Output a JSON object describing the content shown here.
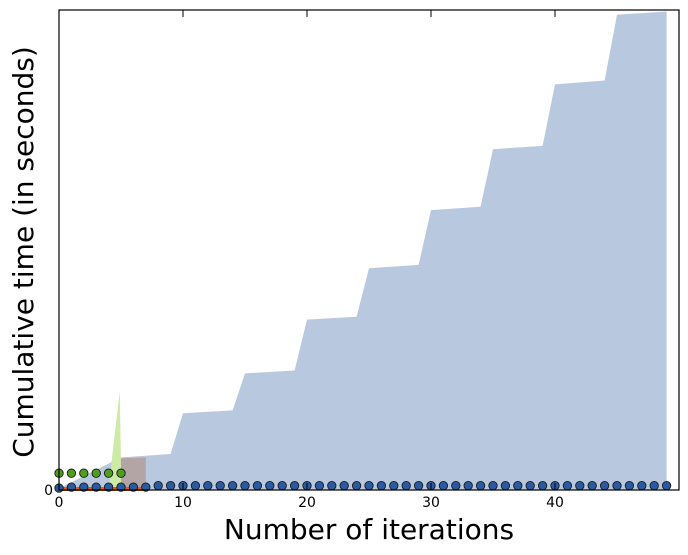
{
  "chart_data": {
    "type": "area",
    "xlabel": "Number of iterations",
    "ylabel": "Cumulative time (in seconds)",
    "xlim": [
      0,
      50
    ],
    "ylim": [
      0,
      100
    ],
    "x_ticks": [
      0,
      10,
      20,
      30,
      40
    ],
    "y_ticks": [
      0
    ],
    "grid": false,
    "legend": "none",
    "series": [
      {
        "kind": "area",
        "color": "#b8c8df",
        "x": [
          0,
          5,
          9,
          10,
          14,
          15,
          19,
          20,
          24,
          25,
          29,
          30,
          34,
          35,
          39,
          40,
          44,
          45,
          49
        ],
        "values": [
          0.3,
          6.8,
          7.5,
          16.0,
          16.6,
          24.3,
          24.9,
          35.5,
          36.1,
          46.2,
          46.9,
          58.3,
          59.0,
          71.0,
          71.7,
          84.5,
          85.3,
          99.0,
          99.7
        ]
      },
      {
        "kind": "area",
        "color": "#b3a5a6",
        "x": [
          0,
          4,
          5,
          7
        ],
        "values": [
          0.3,
          0.5,
          6.6,
          6.8
        ]
      },
      {
        "kind": "area",
        "color": "#cdeaa6",
        "x": [
          0,
          4,
          4.9,
          5
        ],
        "values": [
          0.3,
          0.5,
          20.6,
          5.0
        ]
      },
      {
        "kind": "line",
        "color": "#e05a1c",
        "x": [
          0,
          1,
          2,
          3,
          4,
          5,
          6,
          7
        ],
        "values": [
          0.2,
          0.2,
          0.2,
          0.2,
          0.2,
          0.2,
          0.2,
          0.2
        ]
      },
      {
        "kind": "markers",
        "color": "#4f9e1d",
        "x": [
          0,
          1,
          2,
          3,
          4,
          5
        ],
        "values": [
          3.5,
          3.5,
          3.5,
          3.5,
          3.5,
          3.5
        ]
      },
      {
        "kind": "markers",
        "color": "#2a5aa0",
        "x": [
          0,
          1,
          2,
          3,
          4,
          5,
          6,
          7,
          8,
          9,
          10,
          11,
          12,
          13,
          14,
          15,
          16,
          17,
          18,
          19,
          20,
          21,
          22,
          23,
          24,
          25,
          26,
          27,
          28,
          29,
          30,
          31,
          32,
          33,
          34,
          35,
          36,
          37,
          38,
          39,
          40,
          41,
          42,
          43,
          44,
          45,
          46,
          47,
          48,
          49
        ],
        "values": [
          0.4,
          0.6,
          0.6,
          0.6,
          0.6,
          0.6,
          0.6,
          0.6,
          0.9,
          0.9,
          0.9,
          0.9,
          0.9,
          0.9,
          0.9,
          0.9,
          0.9,
          0.9,
          0.9,
          0.9,
          0.9,
          0.9,
          0.9,
          0.9,
          0.9,
          0.9,
          0.9,
          0.9,
          0.9,
          0.9,
          0.9,
          0.9,
          0.9,
          0.9,
          0.9,
          0.9,
          0.9,
          0.9,
          0.9,
          0.9,
          0.9,
          0.9,
          0.9,
          0.9,
          0.9,
          0.9,
          0.9,
          0.9,
          0.9,
          0.9
        ]
      }
    ]
  }
}
